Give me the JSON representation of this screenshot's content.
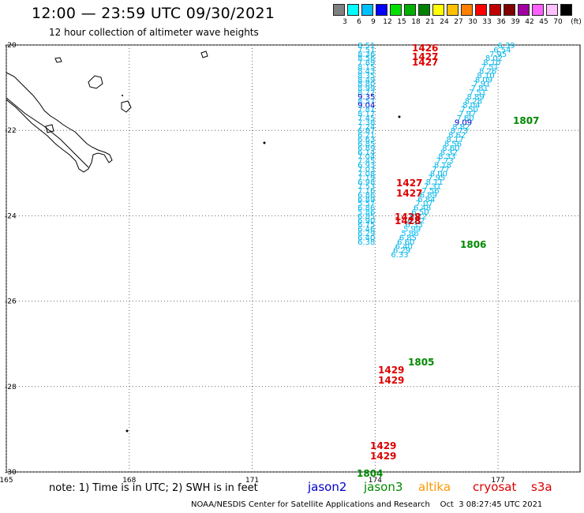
{
  "header": {
    "title": "12:00 — 23:59 UTC 09/30/2021",
    "subtitle": "12 hour collection of altimeter wave heights"
  },
  "scale": {
    "unit": "(ft)",
    "bins": [
      {
        "color": "#808080",
        "label": "3"
      },
      {
        "color": "#00ffff",
        "label": "6"
      },
      {
        "color": "#00c0ff",
        "label": "9"
      },
      {
        "color": "#0000ff",
        "label": "12"
      },
      {
        "color": "#00e000",
        "label": "15"
      },
      {
        "color": "#00b000",
        "label": "18"
      },
      {
        "color": "#008000",
        "label": "21"
      },
      {
        "color": "#ffff00",
        "label": "24"
      },
      {
        "color": "#ffc000",
        "label": "27"
      },
      {
        "color": "#ff8000",
        "label": "30"
      },
      {
        "color": "#ff0000",
        "label": "33"
      },
      {
        "color": "#c00000",
        "label": "36"
      },
      {
        "color": "#800000",
        "label": "39"
      },
      {
        "color": "#a000a0",
        "label": "42"
      },
      {
        "color": "#ff60ff",
        "label": "45"
      },
      {
        "color": "#ffc0ff",
        "label": "70"
      },
      {
        "color": "#000000",
        "label": ""
      }
    ]
  },
  "footer": {
    "note": "note: 1) Time is in UTC; 2) SWH is in feet",
    "missions": [
      {
        "name": "jason2",
        "color": "#0000cc"
      },
      {
        "name": "jason3",
        "color": "#008800"
      },
      {
        "name": "altika",
        "color": "#ff9900"
      },
      {
        "name": "cryosat",
        "color": "#dd0000"
      },
      {
        "name": "s3a",
        "color": "#dd0000"
      }
    ],
    "credit": "NOAA/NESDIS Center for Satellite Applications and Research    Oct  3 08:27:45 UTC 2021"
  },
  "chart_data": {
    "type": "scatter",
    "title": "12:00 — 23:59 UTC 09/30/2021",
    "subtitle": "12 hour collection of altimeter wave heights",
    "xlabel": "",
    "ylabel": "",
    "xlim": [
      165,
      179
    ],
    "ylim": [
      -30,
      -20
    ],
    "x_ticks": [
      165,
      168,
      171,
      174,
      177
    ],
    "y_ticks": [
      -20,
      -22,
      -24,
      -26,
      -28,
      -30
    ],
    "grid": true,
    "units": "ft",
    "track_a": {
      "satellite": "jason3",
      "points": [
        {
          "lon": 177.2,
          "lat": -20.0,
          "swh": 6.39
        },
        {
          "lon": 177.1,
          "lat": -20.1,
          "swh": 6.54
        },
        {
          "lon": 177.0,
          "lat": -20.2,
          "swh": 7.95
        },
        {
          "lon": 176.9,
          "lat": -20.3,
          "swh": 8.02
        },
        {
          "lon": 176.85,
          "lat": -20.4,
          "swh": 8.1
        },
        {
          "lon": 176.8,
          "lat": -20.5,
          "swh": 7.51
        },
        {
          "lon": 176.75,
          "lat": -20.6,
          "swh": 8.26
        },
        {
          "lon": 176.7,
          "lat": -20.7,
          "swh": 8.1
        },
        {
          "lon": 176.65,
          "lat": -20.8,
          "swh": 8.09
        },
        {
          "lon": 176.6,
          "lat": -20.9,
          "swh": 7.91
        },
        {
          "lon": 176.55,
          "lat": -21.0,
          "swh": 7.81
        },
        {
          "lon": 176.5,
          "lat": -21.1,
          "swh": 7.51
        },
        {
          "lon": 176.45,
          "lat": -21.2,
          "swh": 8.89
        },
        {
          "lon": 176.4,
          "lat": -21.3,
          "swh": 8.28
        },
        {
          "lon": 176.35,
          "lat": -21.4,
          "swh": 8.04
        },
        {
          "lon": 176.3,
          "lat": -21.5,
          "swh": 7.5
        },
        {
          "lon": 176.25,
          "lat": -21.6,
          "swh": 7.97
        },
        {
          "lon": 176.2,
          "lat": -21.7,
          "swh": 7.6
        },
        {
          "lon": 176.15,
          "lat": -21.8,
          "swh": 9.09
        },
        {
          "lon": 176.1,
          "lat": -21.9,
          "swh": 8.82
        },
        {
          "lon": 176.05,
          "lat": -22.0,
          "swh": 8.73
        },
        {
          "lon": 176.0,
          "lat": -22.1,
          "swh": 8.62
        },
        {
          "lon": 175.95,
          "lat": -22.2,
          "swh": 8.17
        },
        {
          "lon": 175.9,
          "lat": -22.3,
          "swh": 8.56
        },
        {
          "lon": 175.85,
          "lat": -22.4,
          "swh": 8.6
        },
        {
          "lon": 175.8,
          "lat": -22.5,
          "swh": 8.32
        },
        {
          "lon": 175.75,
          "lat": -22.6,
          "swh": 8.33
        },
        {
          "lon": 175.7,
          "lat": -22.7,
          "swh": 7.73
        },
        {
          "lon": 175.65,
          "lat": -22.8,
          "swh": 8.18
        },
        {
          "lon": 175.6,
          "lat": -22.9,
          "swh": 7.77
        },
        {
          "lon": 175.55,
          "lat": -23.0,
          "swh": 8.0
        },
        {
          "lon": 175.5,
          "lat": -23.1,
          "swh": 7.95
        },
        {
          "lon": 175.45,
          "lat": -23.2,
          "swh": 8.11
        },
        {
          "lon": 175.4,
          "lat": -23.3,
          "swh": 7.31
        },
        {
          "lon": 175.35,
          "lat": -23.4,
          "swh": 7.56
        },
        {
          "lon": 175.3,
          "lat": -23.5,
          "swh": 6.89
        },
        {
          "lon": 175.25,
          "lat": -23.6,
          "swh": 6.84
        },
        {
          "lon": 175.2,
          "lat": -23.7,
          "swh": 7.07
        },
        {
          "lon": 175.15,
          "lat": -23.8,
          "swh": 6.48
        },
        {
          "lon": 175.1,
          "lat": -23.9,
          "swh": 6.5
        },
        {
          "lon": 175.05,
          "lat": -24.0,
          "swh": 6.22
        },
        {
          "lon": 175.0,
          "lat": -24.1,
          "swh": 6.02
        },
        {
          "lon": 174.95,
          "lat": -24.2,
          "swh": 6.35
        },
        {
          "lon": 174.9,
          "lat": -24.3,
          "swh": 5.99
        },
        {
          "lon": 174.85,
          "lat": -24.4,
          "swh": 5.86
        },
        {
          "lon": 174.8,
          "lat": -24.5,
          "swh": 6.85
        },
        {
          "lon": 174.75,
          "lat": -24.6,
          "swh": 6.6
        },
        {
          "lon": 174.7,
          "lat": -24.7,
          "swh": 6.4
        },
        {
          "lon": 174.65,
          "lat": -24.8,
          "swh": 6.29
        },
        {
          "lon": 174.6,
          "lat": -24.9,
          "swh": 6.33
        }
      ]
    },
    "track_b": {
      "satellite": "jason3",
      "points": [
        {
          "lon": 174.0,
          "lat": -20.0,
          "swh": 8.51
        },
        {
          "lon": 174.0,
          "lat": -20.1,
          "swh": 7.51
        },
        {
          "lon": 174.0,
          "lat": -20.2,
          "swh": 8.36
        },
        {
          "lon": 174.0,
          "lat": -20.3,
          "swh": 8.56
        },
        {
          "lon": 174.0,
          "lat": -20.4,
          "swh": 7.89
        },
        {
          "lon": 174.0,
          "lat": -20.5,
          "swh": 8.15
        },
        {
          "lon": 174.0,
          "lat": -20.6,
          "swh": 8.43
        },
        {
          "lon": 174.0,
          "lat": -20.7,
          "swh": 8.35
        },
        {
          "lon": 174.0,
          "lat": -20.8,
          "swh": 8.49
        },
        {
          "lon": 174.0,
          "lat": -20.9,
          "swh": 8.8
        },
        {
          "lon": 174.0,
          "lat": -21.0,
          "swh": 8.99
        },
        {
          "lon": 174.0,
          "lat": -21.1,
          "swh": 8.72
        },
        {
          "lon": 174.0,
          "lat": -21.2,
          "swh": 9.35
        },
        {
          "lon": 174.0,
          "lat": -21.3,
          "swh": 8.57
        },
        {
          "lon": 174.0,
          "lat": -21.4,
          "swh": 9.04
        },
        {
          "lon": 174.0,
          "lat": -21.5,
          "swh": 7.81
        },
        {
          "lon": 174.0,
          "lat": -21.6,
          "swh": 8.17
        },
        {
          "lon": 174.0,
          "lat": -21.7,
          "swh": 7.45
        },
        {
          "lon": 174.0,
          "lat": -21.8,
          "swh": 7.38
        },
        {
          "lon": 174.0,
          "lat": -21.9,
          "swh": 7.24
        },
        {
          "lon": 174.0,
          "lat": -22.0,
          "swh": 6.87
        },
        {
          "lon": 174.0,
          "lat": -22.1,
          "swh": 6.21
        },
        {
          "lon": 174.0,
          "lat": -22.2,
          "swh": 6.63
        },
        {
          "lon": 174.0,
          "lat": -22.3,
          "swh": 6.85
        },
        {
          "lon": 174.0,
          "lat": -22.4,
          "swh": 6.89
        },
        {
          "lon": 174.0,
          "lat": -22.5,
          "swh": 6.14
        },
        {
          "lon": 174.0,
          "lat": -22.6,
          "swh": 7.04
        },
        {
          "lon": 174.0,
          "lat": -22.7,
          "swh": 7.45
        },
        {
          "lon": 174.0,
          "lat": -22.8,
          "swh": 6.93
        },
        {
          "lon": 174.0,
          "lat": -22.9,
          "swh": 7.03
        },
        {
          "lon": 174.0,
          "lat": -23.0,
          "swh": 7.08
        },
        {
          "lon": 174.0,
          "lat": -23.1,
          "swh": 7.19
        },
        {
          "lon": 174.0,
          "lat": -23.2,
          "swh": 6.98
        },
        {
          "lon": 174.0,
          "lat": -23.3,
          "swh": 7.53
        },
        {
          "lon": 174.0,
          "lat": -23.4,
          "swh": 7.16
        },
        {
          "lon": 174.0,
          "lat": -23.5,
          "swh": 6.86
        },
        {
          "lon": 174.0,
          "lat": -23.6,
          "swh": 6.89
        },
        {
          "lon": 174.0,
          "lat": -23.7,
          "swh": 5.57
        },
        {
          "lon": 174.0,
          "lat": -23.8,
          "swh": 6.86
        },
        {
          "lon": 174.0,
          "lat": -23.9,
          "swh": 5.86
        },
        {
          "lon": 174.0,
          "lat": -24.0,
          "swh": 6.85
        },
        {
          "lon": 174.0,
          "lat": -24.1,
          "swh": 6.9
        },
        {
          "lon": 174.0,
          "lat": -24.2,
          "swh": 6.75
        },
        {
          "lon": 174.0,
          "lat": -24.3,
          "swh": 6.46
        },
        {
          "lon": 174.0,
          "lat": -24.4,
          "swh": 6.29
        },
        {
          "lon": 174.0,
          "lat": -24.5,
          "swh": 6.4
        },
        {
          "lon": 174.0,
          "lat": -24.6,
          "swh": 6.38
        }
      ]
    },
    "time_labels": [
      {
        "text": "1426",
        "satellite": "cryosat"
      },
      {
        "text": "1427",
        "satellite": "cryosat"
      },
      {
        "text": "1427",
        "satellite": "cryosat"
      },
      {
        "text": "1807",
        "satellite": "jason3"
      },
      {
        "text": "1427",
        "satellite": "cryosat"
      },
      {
        "text": "1427",
        "satellite": "cryosat"
      },
      {
        "text": "1428",
        "satellite": "cryosat"
      },
      {
        "text": "1428",
        "satellite": "cryosat"
      },
      {
        "text": "1806",
        "satellite": "jason3"
      },
      {
        "text": "1805",
        "satellite": "jason3"
      },
      {
        "text": "1429",
        "satellite": "cryosat"
      },
      {
        "text": "1429",
        "satellite": "cryosat"
      },
      {
        "text": "1429",
        "satellite": "cryosat"
      },
      {
        "text": "1429",
        "satellite": "cryosat"
      },
      {
        "text": "1804",
        "satellite": "jason3"
      }
    ]
  }
}
